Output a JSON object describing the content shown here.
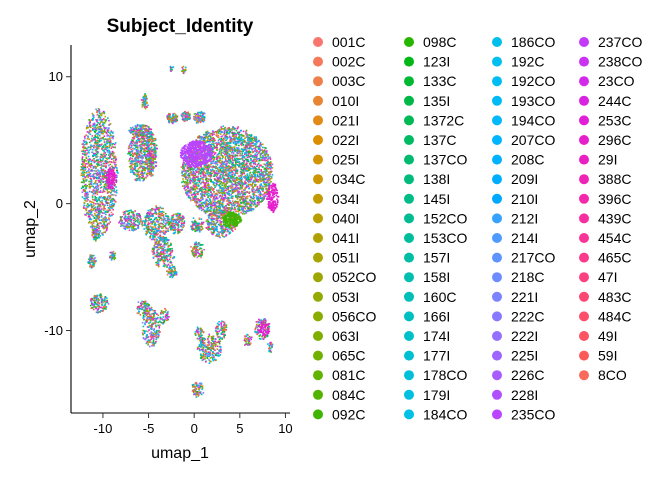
{
  "chart_data": {
    "type": "scatter",
    "title": "Subject_Identity",
    "xlabel": "umap_1",
    "ylabel": "umap_2",
    "xlim": [
      -13.5,
      10.5
    ],
    "ylim": [
      -16.5,
      12.5
    ],
    "xticks": [
      -10,
      -5,
      0,
      5,
      10
    ],
    "yticks": [
      -10,
      0,
      10
    ],
    "grid": false,
    "legend_position": "right",
    "legend_columns": 4,
    "series": [
      {
        "name": "001C",
        "color": "#F8766D"
      },
      {
        "name": "002C",
        "color": "#F47A5B"
      },
      {
        "name": "003C",
        "color": "#EF7F48"
      },
      {
        "name": "010I",
        "color": "#E98432"
      },
      {
        "name": "021I",
        "color": "#E28A17"
      },
      {
        "name": "022I",
        "color": "#DB8E00"
      },
      {
        "name": "025I",
        "color": "#D39200"
      },
      {
        "name": "034C",
        "color": "#CB9600"
      },
      {
        "name": "034I",
        "color": "#C39A00"
      },
      {
        "name": "040I",
        "color": "#BA9E00"
      },
      {
        "name": "041I",
        "color": "#B1A100"
      },
      {
        "name": "051I",
        "color": "#A8A400"
      },
      {
        "name": "052CO",
        "color": "#9EA700"
      },
      {
        "name": "053I",
        "color": "#94AA00"
      },
      {
        "name": "056CO",
        "color": "#89AC00"
      },
      {
        "name": "063I",
        "color": "#7DAE00"
      },
      {
        "name": "065C",
        "color": "#70B000"
      },
      {
        "name": "081C",
        "color": "#62B200"
      },
      {
        "name": "084C",
        "color": "#53B400"
      },
      {
        "name": "092C",
        "color": "#40B500"
      },
      {
        "name": "098C",
        "color": "#27B600"
      },
      {
        "name": "123I",
        "color": "#00B715"
      },
      {
        "name": "133C",
        "color": "#00B832"
      },
      {
        "name": "135I",
        "color": "#00B845"
      },
      {
        "name": "1372C",
        "color": "#00B954"
      },
      {
        "name": "137C",
        "color": "#00BA62"
      },
      {
        "name": "137CO",
        "color": "#00BA6F"
      },
      {
        "name": "138I",
        "color": "#00BB7B"
      },
      {
        "name": "145I",
        "color": "#00BC87"
      },
      {
        "name": "152CO",
        "color": "#00BC92"
      },
      {
        "name": "153CO",
        "color": "#00BD9C"
      },
      {
        "name": "157I",
        "color": "#00BEA6"
      },
      {
        "name": "158I",
        "color": "#00BEB0"
      },
      {
        "name": "160C",
        "color": "#00BFB9"
      },
      {
        "name": "166I",
        "color": "#00BFC2"
      },
      {
        "name": "174I",
        "color": "#00C0CA"
      },
      {
        "name": "177I",
        "color": "#00C0D2"
      },
      {
        "name": "178CO",
        "color": "#00C0D9"
      },
      {
        "name": "179I",
        "color": "#00C0E0"
      },
      {
        "name": "184CO",
        "color": "#00C0E6"
      },
      {
        "name": "186CO",
        "color": "#00BFEB"
      },
      {
        "name": "192C",
        "color": "#00BEF0"
      },
      {
        "name": "192CO",
        "color": "#00BCF4"
      },
      {
        "name": "193CO",
        "color": "#00BAF8"
      },
      {
        "name": "194CO",
        "color": "#00B8FB"
      },
      {
        "name": "207CO",
        "color": "#00B5FE"
      },
      {
        "name": "208C",
        "color": "#00B1FF"
      },
      {
        "name": "209I",
        "color": "#00ADFF"
      },
      {
        "name": "210I",
        "color": "#00A8FF"
      },
      {
        "name": "212I",
        "color": "#35A2FF"
      },
      {
        "name": "214I",
        "color": "#4D9BFF"
      },
      {
        "name": "217CO",
        "color": "#5F94FF"
      },
      {
        "name": "218C",
        "color": "#6E8CFF"
      },
      {
        "name": "221I",
        "color": "#7B83FF"
      },
      {
        "name": "222C",
        "color": "#887AFF"
      },
      {
        "name": "222I",
        "color": "#9370FF"
      },
      {
        "name": "225I",
        "color": "#9E66FF"
      },
      {
        "name": "226C",
        "color": "#A85BFF"
      },
      {
        "name": "228I",
        "color": "#B150FF"
      },
      {
        "name": "235CO",
        "color": "#BA44FF"
      },
      {
        "name": "237CO",
        "color": "#C33AF9"
      },
      {
        "name": "238CO",
        "color": "#CB31F1"
      },
      {
        "name": "23CO",
        "color": "#D329E9"
      },
      {
        "name": "244C",
        "color": "#DA23E0"
      },
      {
        "name": "253C",
        "color": "#E11FD6"
      },
      {
        "name": "296C",
        "color": "#E61ECC"
      },
      {
        "name": "29I",
        "color": "#EB20C2"
      },
      {
        "name": "388C",
        "color": "#EF24B7"
      },
      {
        "name": "396C",
        "color": "#F329AC"
      },
      {
        "name": "439C",
        "color": "#F62FA1"
      },
      {
        "name": "454C",
        "color": "#F83596"
      },
      {
        "name": "465C",
        "color": "#FA3B8B"
      },
      {
        "name": "47I",
        "color": "#FB4180"
      },
      {
        "name": "483C",
        "color": "#FC4775"
      },
      {
        "name": "484C",
        "color": "#FC4E6B"
      },
      {
        "name": "49I",
        "color": "#FB5462"
      },
      {
        "name": "59I",
        "color": "#FA5B58"
      },
      {
        "name": "8CO",
        "color": "#F86A5A"
      }
    ],
    "clusters": [
      {
        "cx": -10.5,
        "cy": 2.5,
        "rx": 2.0,
        "ry": 5.0,
        "n": 1300
      },
      {
        "cx": 3.5,
        "cy": 2.5,
        "rx": 5.0,
        "ry": 3.6,
        "n": 3200
      },
      {
        "cx": -6.0,
        "cy": 3.8,
        "rx": 1.3,
        "ry": 2.0,
        "n": 450
      },
      {
        "cx": -4.8,
        "cy": 4.0,
        "rx": 0.6,
        "ry": 1.8,
        "n": 220
      },
      {
        "cx": -6.0,
        "cy": 5.8,
        "rx": 1.2,
        "ry": 0.5,
        "n": 160
      },
      {
        "cx": -2.5,
        "cy": 6.8,
        "rx": 0.6,
        "ry": 0.4,
        "n": 90
      },
      {
        "cx": -1.0,
        "cy": 6.9,
        "rx": 0.5,
        "ry": 0.4,
        "n": 70
      },
      {
        "cx": 0.5,
        "cy": 6.9,
        "rx": 0.6,
        "ry": 0.5,
        "n": 90
      },
      {
        "cx": -5.5,
        "cy": 8.0,
        "rx": 0.3,
        "ry": 0.6,
        "n": 50
      },
      {
        "cx": -2.6,
        "cy": 10.7,
        "rx": 0.2,
        "ry": 0.2,
        "n": 10
      },
      {
        "cx": -1.2,
        "cy": 10.6,
        "rx": 0.25,
        "ry": 0.3,
        "n": 15
      },
      {
        "cx": -7.0,
        "cy": -1.3,
        "rx": 1.3,
        "ry": 0.8,
        "n": 180
      },
      {
        "cx": -4.2,
        "cy": -1.5,
        "rx": 1.4,
        "ry": 1.4,
        "n": 320
      },
      {
        "cx": -2.0,
        "cy": -1.5,
        "rx": 0.9,
        "ry": 0.8,
        "n": 160
      },
      {
        "cx": -3.5,
        "cy": -3.8,
        "rx": 1.2,
        "ry": 1.2,
        "n": 220
      },
      {
        "cx": -2.5,
        "cy": -5.3,
        "rx": 0.6,
        "ry": 0.5,
        "n": 60
      },
      {
        "cx": 0.2,
        "cy": -1.6,
        "rx": 0.7,
        "ry": 0.6,
        "n": 90
      },
      {
        "cx": 0.3,
        "cy": -3.6,
        "rx": 0.7,
        "ry": 0.6,
        "n": 90
      },
      {
        "cx": 2.9,
        "cy": -1.5,
        "rx": 1.7,
        "ry": 1.1,
        "n": 320
      },
      {
        "cx": -10.9,
        "cy": -2.3,
        "rx": 0.4,
        "ry": 0.5,
        "n": 50
      },
      {
        "cx": -11.3,
        "cy": -4.5,
        "rx": 0.4,
        "ry": 0.5,
        "n": 60
      },
      {
        "cx": -9.0,
        "cy": -4.0,
        "rx": 0.3,
        "ry": 0.4,
        "n": 35
      },
      {
        "cx": -10.5,
        "cy": -7.8,
        "rx": 1.0,
        "ry": 0.7,
        "n": 140
      },
      {
        "cx": -5.6,
        "cy": -8.2,
        "rx": 0.8,
        "ry": 0.6,
        "n": 80
      },
      {
        "cx": -4.8,
        "cy": -9.7,
        "rx": 1.0,
        "ry": 1.5,
        "n": 200
      },
      {
        "cx": -3.4,
        "cy": -8.8,
        "rx": 0.5,
        "ry": 0.6,
        "n": 50
      },
      {
        "cx": 1.6,
        "cy": -11.4,
        "rx": 1.3,
        "ry": 1.1,
        "n": 220
      },
      {
        "cx": 2.9,
        "cy": -9.9,
        "rx": 0.6,
        "ry": 0.8,
        "n": 80
      },
      {
        "cx": 0.5,
        "cy": -10.2,
        "rx": 0.5,
        "ry": 0.5,
        "n": 50
      },
      {
        "cx": 7.4,
        "cy": -9.8,
        "rx": 0.8,
        "ry": 0.8,
        "n": 110
      },
      {
        "cx": 5.8,
        "cy": -10.7,
        "rx": 0.4,
        "ry": 0.5,
        "n": 40
      },
      {
        "cx": 8.2,
        "cy": -11.2,
        "rx": 0.3,
        "ry": 0.4,
        "n": 25
      },
      {
        "cx": 0.3,
        "cy": -14.6,
        "rx": 0.6,
        "ry": 0.6,
        "n": 70
      }
    ],
    "tinted_regions": [
      {
        "cx": 0.2,
        "cy": 4.0,
        "rx": 1.8,
        "ry": 1.0,
        "color": "#BA44FF",
        "n": 500
      },
      {
        "cx": 4.0,
        "cy": -1.2,
        "rx": 1.0,
        "ry": 0.6,
        "color": "#40B500",
        "n": 200
      },
      {
        "cx": -9.2,
        "cy": 2.0,
        "rx": 0.6,
        "ry": 0.8,
        "color": "#E61ECC",
        "n": 120
      },
      {
        "cx": 8.5,
        "cy": 0.5,
        "rx": 0.6,
        "ry": 1.2,
        "color": "#E61ECC",
        "n": 150
      },
      {
        "cx": 7.6,
        "cy": -9.8,
        "rx": 0.6,
        "ry": 0.6,
        "color": "#E61ECC",
        "n": 60
      }
    ]
  }
}
